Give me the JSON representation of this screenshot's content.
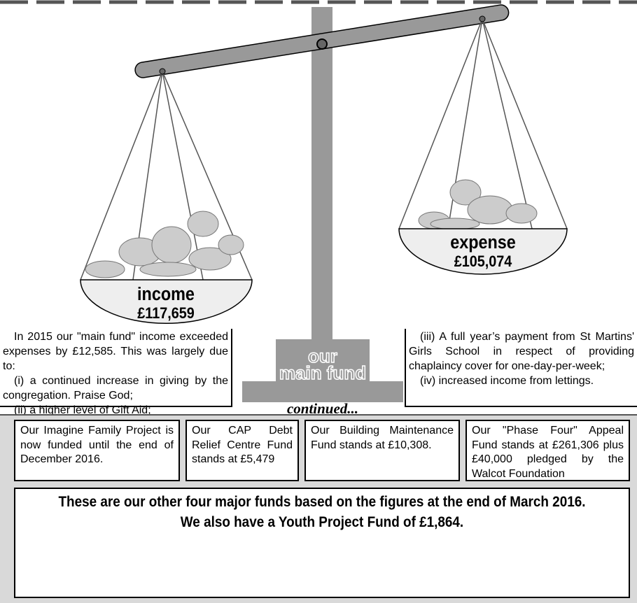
{
  "scale": {
    "pillar_top": "our",
    "pillar_bottom": "main fund",
    "continued": "continued...",
    "income_label": "income",
    "income_value": "£117,659",
    "expense_label": "expense",
    "expense_value": "£105,074"
  },
  "left_text": [
    "In 2015 our \"main fund\" income exceeded expenses by £12,585. This was largely due to:",
    "(i) a continued increase in giving by the congregation. Praise God;",
    "(ii) a higher level of Gift Aid;"
  ],
  "right_text": [
    "(iii) A full year’s payment from St Martins' Girls School in respect of providing chaplaincy cover for one-day-per-week;",
    "(iv) increased income from lettings."
  ],
  "funds": [
    "Our Imagine Family Project is now funded until the end of December 2016.",
    "Our CAP Debt Relief Centre Fund stands at £5,479",
    "Our Building Maintenance Fund stands at £10,308.",
    "Our \"Phase Four\" Appeal Fund stands at £261,306 plus £40,000 pledged by the Walcot Foundation"
  ],
  "footer": [
    "These are our other four major funds based on the figures at the end of March 2016.",
    "We also have a Youth Project Fund of £1,864."
  ]
}
